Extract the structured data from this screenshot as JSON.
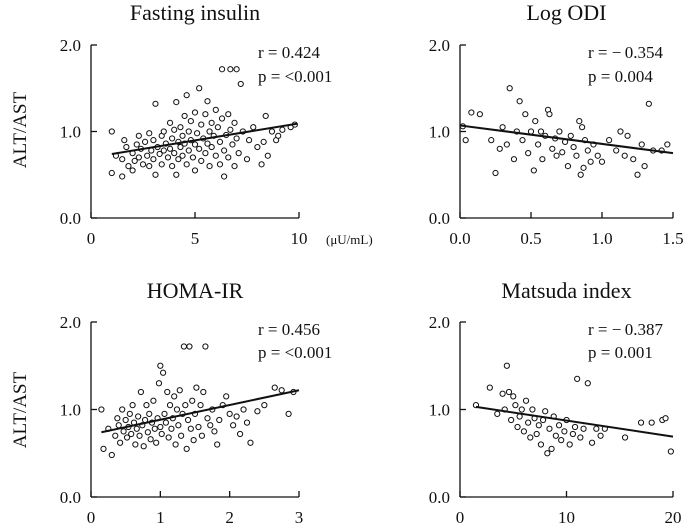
{
  "figure": {
    "ylabel_top": "ALT/AST",
    "ylabel_bottom": "ALT/AST"
  },
  "chart_data": [
    {
      "type": "scatter",
      "title": "Fasting insulin",
      "xlabel": "",
      "x_unit": "(μU/mL)",
      "ylabel": "ALT/AST",
      "xlim": [
        0,
        10
      ],
      "ylim": [
        0,
        2
      ],
      "xticks": [
        "0",
        "5",
        "10"
      ],
      "yticks": [
        "0.0",
        "1.0",
        "2.0"
      ],
      "stats": {
        "r": "r = 0.424",
        "p": "p = <0.001"
      },
      "fit": {
        "x": [
          1.0,
          9.9
        ],
        "y": [
          0.74,
          1.09
        ]
      },
      "points": [
        [
          1.0,
          1.0
        ],
        [
          1.0,
          0.52
        ],
        [
          1.2,
          0.72
        ],
        [
          1.5,
          0.68
        ],
        [
          1.5,
          0.48
        ],
        [
          1.6,
          0.9
        ],
        [
          1.7,
          0.82
        ],
        [
          1.8,
          0.6
        ],
        [
          2.0,
          0.75
        ],
        [
          2.0,
          0.55
        ],
        [
          2.1,
          0.66
        ],
        [
          2.2,
          0.85
        ],
        [
          2.3,
          0.95
        ],
        [
          2.3,
          0.7
        ],
        [
          2.4,
          0.8
        ],
        [
          2.5,
          0.62
        ],
        [
          2.6,
          0.88
        ],
        [
          2.7,
          0.72
        ],
        [
          2.8,
          0.98
        ],
        [
          2.8,
          0.6
        ],
        [
          2.9,
          0.78
        ],
        [
          3.0,
          0.68
        ],
        [
          3.0,
          0.9
        ],
        [
          3.1,
          1.32
        ],
        [
          3.1,
          0.5
        ],
        [
          3.2,
          0.82
        ],
        [
          3.3,
          0.74
        ],
        [
          3.4,
          0.95
        ],
        [
          3.4,
          0.62
        ],
        [
          3.5,
          1.0
        ],
        [
          3.5,
          0.78
        ],
        [
          3.6,
          0.86
        ],
        [
          3.7,
          0.7
        ],
        [
          3.8,
          1.1
        ],
        [
          3.8,
          0.8
        ],
        [
          3.9,
          0.92
        ],
        [
          3.9,
          0.6
        ],
        [
          4.0,
          1.02
        ],
        [
          4.0,
          0.75
        ],
        [
          4.1,
          1.34
        ],
        [
          4.1,
          0.5
        ],
        [
          4.2,
          0.88
        ],
        [
          4.2,
          0.68
        ],
        [
          4.3,
          1.05
        ],
        [
          4.3,
          0.82
        ],
        [
          4.4,
          0.95
        ],
        [
          4.4,
          0.72
        ],
        [
          4.5,
          1.18
        ],
        [
          4.5,
          0.86
        ],
        [
          4.6,
          1.42
        ],
        [
          4.6,
          0.62
        ],
        [
          4.7,
          1.0
        ],
        [
          4.7,
          0.78
        ],
        [
          4.8,
          1.12
        ],
        [
          4.8,
          0.9
        ],
        [
          4.9,
          0.7
        ],
        [
          5.0,
          1.22
        ],
        [
          5.0,
          0.85
        ],
        [
          5.0,
          0.55
        ],
        [
          5.1,
          0.98
        ],
        [
          5.2,
          1.5
        ],
        [
          5.2,
          0.8
        ],
        [
          5.3,
          1.08
        ],
        [
          5.3,
          0.66
        ],
        [
          5.4,
          0.92
        ],
        [
          5.5,
          1.2
        ],
        [
          5.5,
          0.75
        ],
        [
          5.6,
          1.35
        ],
        [
          5.6,
          0.86
        ],
        [
          5.7,
          1.0
        ],
        [
          5.7,
          0.6
        ],
        [
          5.8,
          1.1
        ],
        [
          5.8,
          0.82
        ],
        [
          5.9,
          0.95
        ],
        [
          6.0,
          1.25
        ],
        [
          6.0,
          0.72
        ],
        [
          6.1,
          1.05
        ],
        [
          6.2,
          0.88
        ],
        [
          6.2,
          0.62
        ],
        [
          6.3,
          1.15
        ],
        [
          6.3,
          1.72
        ],
        [
          6.4,
          0.78
        ],
        [
          6.4,
          0.48
        ],
        [
          6.5,
          0.96
        ],
        [
          6.6,
          1.2
        ],
        [
          6.6,
          0.7
        ],
        [
          6.7,
          1.72
        ],
        [
          6.7,
          1.02
        ],
        [
          6.8,
          0.85
        ],
        [
          6.9,
          1.1
        ],
        [
          6.9,
          0.6
        ],
        [
          7.0,
          1.72
        ],
        [
          7.0,
          0.92
        ],
        [
          7.1,
          0.75
        ],
        [
          7.2,
          1.55
        ],
        [
          7.3,
          1.0
        ],
        [
          7.5,
          0.68
        ],
        [
          7.6,
          0.9
        ],
        [
          7.8,
          1.05
        ],
        [
          8.0,
          0.82
        ],
        [
          8.2,
          0.62
        ],
        [
          8.3,
          0.88
        ],
        [
          8.4,
          1.18
        ],
        [
          8.5,
          0.72
        ],
        [
          8.7,
          1.0
        ],
        [
          8.9,
          0.9
        ],
        [
          9.0,
          0.95
        ],
        [
          9.2,
          1.02
        ],
        [
          9.6,
          1.05
        ],
        [
          9.8,
          1.08
        ]
      ]
    },
    {
      "type": "scatter",
      "title": "Log ODI",
      "xlabel": "",
      "ylabel": "ALT/AST",
      "xlim": [
        0,
        1.5
      ],
      "ylim": [
        0,
        2
      ],
      "xticks": [
        "0.0",
        "0.5",
        "1.0",
        "1.5"
      ],
      "yticks": [
        "0.0",
        "1.0",
        "2.0"
      ],
      "stats": {
        "r": "r = − 0.354",
        "p": "p = 0.004"
      },
      "fit": {
        "x": [
          0.0,
          1.5
        ],
        "y": [
          1.07,
          0.75
        ]
      },
      "points": [
        [
          0.02,
          1.06
        ],
        [
          0.04,
          0.9
        ],
        [
          0.08,
          1.22
        ],
        [
          0.14,
          1.2
        ],
        [
          0.22,
          0.9
        ],
        [
          0.25,
          0.52
        ],
        [
          0.28,
          0.8
        ],
        [
          0.3,
          1.05
        ],
        [
          0.33,
          0.85
        ],
        [
          0.35,
          1.5
        ],
        [
          0.38,
          0.68
        ],
        [
          0.4,
          1.0
        ],
        [
          0.42,
          1.35
        ],
        [
          0.44,
          0.9
        ],
        [
          0.46,
          1.2
        ],
        [
          0.48,
          0.75
        ],
        [
          0.5,
          1.0
        ],
        [
          0.52,
          0.55
        ],
        [
          0.53,
          1.12
        ],
        [
          0.55,
          0.85
        ],
        [
          0.57,
          1.0
        ],
        [
          0.58,
          0.68
        ],
        [
          0.6,
          0.95
        ],
        [
          0.62,
          1.25
        ],
        [
          0.63,
          1.2
        ],
        [
          0.65,
          0.8
        ],
        [
          0.67,
          0.92
        ],
        [
          0.68,
          0.72
        ],
        [
          0.7,
          1.0
        ],
        [
          0.72,
          0.76
        ],
        [
          0.74,
          0.88
        ],
        [
          0.76,
          0.6
        ],
        [
          0.78,
          0.95
        ],
        [
          0.8,
          0.82
        ],
        [
          0.82,
          0.72
        ],
        [
          0.84,
          1.12
        ],
        [
          0.85,
          0.5
        ],
        [
          0.86,
          1.05
        ],
        [
          0.87,
          0.58
        ],
        [
          0.88,
          0.9
        ],
        [
          0.9,
          0.78
        ],
        [
          0.92,
          0.65
        ],
        [
          0.94,
          0.85
        ],
        [
          0.97,
          0.72
        ],
        [
          1.0,
          0.65
        ],
        [
          1.05,
          0.9
        ],
        [
          1.1,
          0.78
        ],
        [
          1.13,
          1.0
        ],
        [
          1.16,
          0.72
        ],
        [
          1.18,
          0.95
        ],
        [
          1.22,
          0.68
        ],
        [
          1.25,
          0.5
        ],
        [
          1.28,
          0.85
        ],
        [
          1.3,
          0.6
        ],
        [
          1.33,
          1.32
        ],
        [
          1.36,
          0.78
        ],
        [
          1.42,
          0.78
        ],
        [
          1.46,
          0.85
        ]
      ]
    },
    {
      "type": "scatter",
      "title": "HOMA-IR",
      "xlabel": "",
      "ylabel": "ALT/AST",
      "xlim": [
        0,
        3
      ],
      "ylim": [
        0,
        2
      ],
      "xticks": [
        "0",
        "1",
        "2",
        "3"
      ],
      "yticks": [
        "0.0",
        "1.0",
        "2.0"
      ],
      "stats": {
        "r": "r = 0.456",
        "p": "p = <0.001"
      },
      "fit": {
        "x": [
          0.15,
          3.0
        ],
        "y": [
          0.74,
          1.22
        ]
      },
      "points": [
        [
          0.15,
          1.0
        ],
        [
          0.18,
          0.55
        ],
        [
          0.25,
          0.78
        ],
        [
          0.3,
          0.48
        ],
        [
          0.35,
          0.7
        ],
        [
          0.38,
          0.9
        ],
        [
          0.4,
          0.82
        ],
        [
          0.42,
          0.62
        ],
        [
          0.45,
          1.0
        ],
        [
          0.47,
          0.75
        ],
        [
          0.5,
          0.88
        ],
        [
          0.52,
          0.68
        ],
        [
          0.54,
          0.8
        ],
        [
          0.56,
          0.95
        ],
        [
          0.58,
          0.72
        ],
        [
          0.6,
          1.05
        ],
        [
          0.62,
          0.85
        ],
        [
          0.64,
          0.6
        ],
        [
          0.66,
          0.78
        ],
        [
          0.68,
          0.92
        ],
        [
          0.7,
          0.7
        ],
        [
          0.72,
          1.2
        ],
        [
          0.74,
          0.82
        ],
        [
          0.76,
          0.58
        ],
        [
          0.78,
          0.88
        ],
        [
          0.8,
          1.05
        ],
        [
          0.82,
          0.74
        ],
        [
          0.84,
          0.95
        ],
        [
          0.86,
          0.66
        ],
        [
          0.88,
          0.85
        ],
        [
          0.9,
          1.1
        ],
        [
          0.92,
          0.78
        ],
        [
          0.94,
          0.62
        ],
        [
          0.96,
          0.9
        ],
        [
          0.98,
          1.3
        ],
        [
          1.0,
          0.8
        ],
        [
          1.0,
          1.5
        ],
        [
          1.02,
          0.72
        ],
        [
          1.04,
          1.42
        ],
        [
          1.06,
          0.95
        ],
        [
          1.08,
          0.85
        ],
        [
          1.1,
          1.2
        ],
        [
          1.12,
          0.68
        ],
        [
          1.14,
          1.05
        ],
        [
          1.16,
          0.78
        ],
        [
          1.18,
          0.9
        ],
        [
          1.2,
          1.15
        ],
        [
          1.22,
          0.6
        ],
        [
          1.24,
          1.0
        ],
        [
          1.26,
          0.82
        ],
        [
          1.28,
          1.22
        ],
        [
          1.3,
          0.7
        ],
        [
          1.32,
          0.95
        ],
        [
          1.34,
          1.72
        ],
        [
          1.36,
          1.05
        ],
        [
          1.38,
          0.55
        ],
        [
          1.4,
          0.88
        ],
        [
          1.42,
          1.72
        ],
        [
          1.44,
          0.78
        ],
        [
          1.46,
          1.1
        ],
        [
          1.48,
          0.65
        ],
        [
          1.5,
          0.95
        ],
        [
          1.52,
          1.25
        ],
        [
          1.55,
          0.8
        ],
        [
          1.58,
          1.05
        ],
        [
          1.6,
          0.7
        ],
        [
          1.62,
          1.2
        ],
        [
          1.65,
          1.72
        ],
        [
          1.68,
          0.9
        ],
        [
          1.72,
          0.82
        ],
        [
          1.75,
          1.0
        ],
        [
          1.78,
          0.75
        ],
        [
          1.82,
          0.6
        ],
        [
          1.85,
          0.88
        ],
        [
          1.9,
          1.05
        ],
        [
          1.95,
          1.15
        ],
        [
          2.0,
          0.95
        ],
        [
          2.05,
          0.82
        ],
        [
          2.1,
          0.92
        ],
        [
          2.15,
          0.72
        ],
        [
          2.2,
          1.0
        ],
        [
          2.25,
          0.85
        ],
        [
          2.3,
          0.62
        ],
        [
          2.4,
          0.98
        ],
        [
          2.5,
          1.05
        ],
        [
          2.65,
          1.25
        ],
        [
          2.75,
          1.22
        ],
        [
          2.85,
          0.95
        ],
        [
          2.92,
          1.2
        ]
      ]
    },
    {
      "type": "scatter",
      "title": "Matsuda index",
      "xlabel": "",
      "ylabel": "ALT/AST",
      "xlim": [
        0,
        20
      ],
      "ylim": [
        0,
        2
      ],
      "xticks": [
        "0",
        "10",
        "20"
      ],
      "yticks": [
        "0.0",
        "1.0",
        "2.0"
      ],
      "stats": {
        "r": "r = − 0.387",
        "p": "p = 0.001"
      },
      "fit": {
        "x": [
          1.5,
          20.0
        ],
        "y": [
          1.03,
          0.69
        ]
      },
      "points": [
        [
          1.5,
          1.05
        ],
        [
          2.8,
          1.25
        ],
        [
          3.5,
          0.95
        ],
        [
          4.0,
          1.18
        ],
        [
          4.2,
          1.0
        ],
        [
          4.4,
          1.5
        ],
        [
          4.6,
          1.2
        ],
        [
          4.8,
          0.88
        ],
        [
          5.0,
          1.15
        ],
        [
          5.2,
          1.05
        ],
        [
          5.4,
          0.8
        ],
        [
          5.6,
          0.92
        ],
        [
          5.8,
          1.0
        ],
        [
          6.0,
          0.75
        ],
        [
          6.2,
          1.1
        ],
        [
          6.4,
          0.85
        ],
        [
          6.6,
          0.68
        ],
        [
          6.8,
          1.0
        ],
        [
          7.0,
          0.9
        ],
        [
          7.2,
          0.72
        ],
        [
          7.4,
          0.82
        ],
        [
          7.6,
          0.6
        ],
        [
          7.8,
          0.88
        ],
        [
          8.0,
          0.98
        ],
        [
          8.2,
          0.5
        ],
        [
          8.4,
          0.78
        ],
        [
          8.6,
          0.55
        ],
        [
          8.8,
          0.92
        ],
        [
          9.0,
          0.7
        ],
        [
          9.3,
          0.82
        ],
        [
          9.5,
          0.65
        ],
        [
          9.8,
          0.75
        ],
        [
          10.0,
          0.88
        ],
        [
          10.3,
          0.6
        ],
        [
          10.6,
          0.72
        ],
        [
          10.8,
          0.8
        ],
        [
          11.0,
          1.35
        ],
        [
          11.3,
          0.68
        ],
        [
          11.6,
          0.78
        ],
        [
          12.0,
          1.3
        ],
        [
          12.4,
          0.62
        ],
        [
          12.8,
          0.78
        ],
        [
          13.2,
          0.7
        ],
        [
          13.6,
          0.78
        ],
        [
          15.5,
          0.68
        ],
        [
          17.0,
          0.85
        ],
        [
          18.0,
          0.85
        ],
        [
          19.0,
          0.88
        ],
        [
          19.3,
          0.9
        ],
        [
          19.8,
          0.52
        ]
      ]
    }
  ]
}
